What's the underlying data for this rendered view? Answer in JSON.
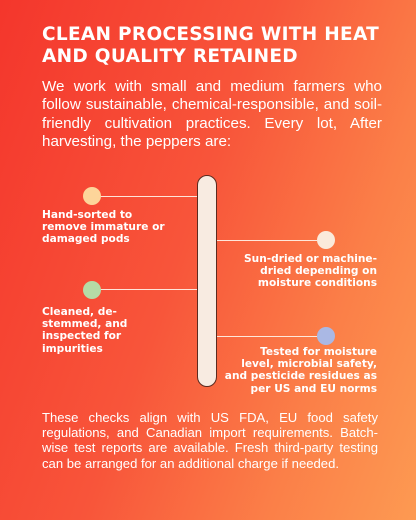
{
  "title": "CLEAN PROCESSING WITH HEAT AND QUALITY RETAINED",
  "intro": "We work with small and medium farmers who follow sustainable, chemical-responsible, and soil-friendly cultivation practices. Every lot, After harvesting, the peppers are:",
  "steps": [
    {
      "text": "Hand-sorted to remove immature or damaged pods",
      "side": "left",
      "dot_color": "#fdd59a"
    },
    {
      "text": "Sun-dried or machine-dried depending on moisture conditions",
      "side": "right",
      "dot_color": "#faeadb"
    },
    {
      "text": "Cleaned, de-stemmed, and inspected for impurities",
      "side": "left",
      "dot_color": "#b5dba6"
    },
    {
      "text": "Tested for moisture level, microbial safety, and pesticide residues as per US and EU norms",
      "side": "right",
      "dot_color": "#aab8e4"
    }
  ],
  "outro": "These checks align with US FDA, EU food safety regulations, and Canadian import requirements. Batch-wise test reports are available. Fresh third-party testing can be arranged for an additional charge if needed."
}
